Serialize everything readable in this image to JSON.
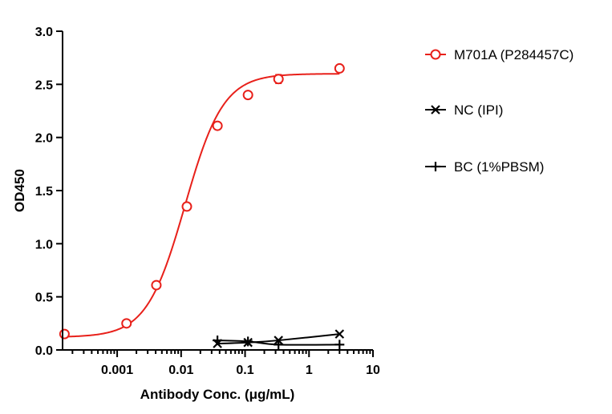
{
  "chart_data": {
    "type": "line",
    "xlabel": "Antibody Conc. (μg/mL)",
    "ylabel": "OD450",
    "xscale": "log",
    "xlim": [
      0.00014,
      10
    ],
    "ylim": [
      0,
      3
    ],
    "xticks": [
      0.001,
      0.01,
      0.1,
      1,
      10
    ],
    "xtick_labels": [
      "0.001",
      "0.01",
      "0.1",
      "1",
      "10"
    ],
    "yticks": [
      0,
      0.5,
      1,
      1.5,
      2,
      2.5,
      3
    ],
    "ytick_labels": [
      "0.0",
      "0.5",
      "1.0",
      "1.5",
      "2.0",
      "2.5",
      "3.0"
    ],
    "grid": false,
    "legend_position": "right",
    "series": [
      {
        "name": "M701A (P284457C)",
        "color": "#e8201a",
        "marker": "open-circle",
        "line": "sigmoid-fit",
        "x": [
          0.00015,
          0.0014,
          0.0041,
          0.0123,
          0.037,
          0.111,
          0.333,
          3
        ],
        "y": [
          0.15,
          0.25,
          0.61,
          1.35,
          2.11,
          2.4,
          2.55,
          2.65
        ],
        "error": [
          0.005,
          0.005,
          0.005,
          0.03,
          0.005,
          0.01,
          0.04,
          0.005
        ],
        "fit": {
          "bottom": 0.12,
          "top": 2.6,
          "ec50": 0.0115,
          "hill": 1.45
        }
      },
      {
        "name": "NC (IPI)",
        "color": "#000000",
        "marker": "x",
        "line": "smooth",
        "x": [
          0.037,
          0.111,
          0.333,
          3
        ],
        "y": [
          0.06,
          0.07,
          0.09,
          0.15
        ]
      },
      {
        "name": "BC (1%PBSM)",
        "color": "#000000",
        "marker": "plus",
        "line": "smooth",
        "x": [
          0.037,
          0.111,
          0.333,
          3
        ],
        "y": [
          0.09,
          0.08,
          0.05,
          0.05
        ]
      }
    ]
  }
}
